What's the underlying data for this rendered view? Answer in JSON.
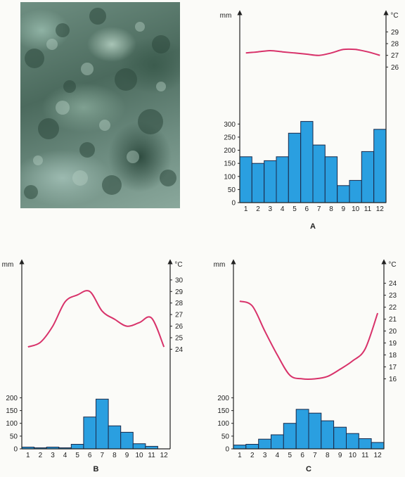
{
  "chart_data": [
    {
      "type": "bar",
      "label": "A",
      "categories": [
        "1",
        "2",
        "3",
        "4",
        "5",
        "6",
        "7",
        "8",
        "9",
        "10",
        "11",
        "12"
      ],
      "series": [
        {
          "values": [
            175,
            150,
            160,
            175,
            265,
            310,
            220,
            175,
            65,
            85,
            195,
            280
          ]
        },
        {
          "values": [
            27.2,
            27.3,
            27.4,
            27.3,
            27.2,
            27.1,
            27.0,
            27.2,
            27.5,
            27.5,
            27.3,
            27.0
          ]
        }
      ],
      "y_left_label": "mm",
      "y_left_ticks": [
        "0",
        "50",
        "100",
        "150",
        "200",
        "250",
        "300"
      ],
      "y_left_lim": [
        0,
        325
      ],
      "y_right_label": "°C",
      "y_right_ticks": [
        "26",
        "27",
        "28",
        "29"
      ],
      "y_right_lim": [
        25.6,
        29.5
      ]
    },
    {
      "type": "bar",
      "label": "B",
      "categories": [
        "1",
        "2",
        "3",
        "4",
        "5",
        "6",
        "7",
        "8",
        "9",
        "10",
        "11",
        "12"
      ],
      "series": [
        {
          "values": [
            7,
            4,
            7,
            4,
            18,
            125,
            195,
            90,
            65,
            20,
            10,
            0
          ]
        },
        {
          "values": [
            24.2,
            24.6,
            26.0,
            28.1,
            28.7,
            29.0,
            27.3,
            26.6,
            26.0,
            26.3,
            26.7,
            24.2
          ]
        }
      ],
      "y_left_label": "mm",
      "y_left_ticks": [
        "0",
        "50",
        "100",
        "150",
        "200"
      ],
      "y_left_lim": [
        0,
        215
      ],
      "y_right_label": "°C",
      "y_right_ticks": [
        "24",
        "25",
        "26",
        "27",
        "28",
        "29",
        "30"
      ],
      "y_right_lim": [
        23.6,
        30.6
      ]
    },
    {
      "type": "bar",
      "label": "C",
      "categories": [
        "1",
        "2",
        "3",
        "4",
        "5",
        "6",
        "7",
        "8",
        "9",
        "10",
        "11",
        "12"
      ],
      "series": [
        {
          "values": [
            15,
            18,
            38,
            55,
            100,
            155,
            140,
            110,
            85,
            60,
            40,
            25
          ]
        },
        {
          "values": [
            22.5,
            22.1,
            20.0,
            18.0,
            16.3,
            16.0,
            16.0,
            16.2,
            16.8,
            17.5,
            18.5,
            21.5
          ]
        }
      ],
      "y_left_label": "mm",
      "y_left_ticks": [
        "0",
        "50",
        "100",
        "150",
        "200"
      ],
      "y_left_lim": [
        0,
        215
      ],
      "y_right_label": "°C",
      "y_right_ticks": [
        "16",
        "17",
        "18",
        "19",
        "20",
        "21",
        "22",
        "23",
        "24"
      ],
      "y_right_lim": [
        15.5,
        24.8
      ]
    }
  ],
  "colors": {
    "bar_fill": "#2a9fe0",
    "bar_stroke": "#1b2a4a",
    "line": "#d8326a",
    "axis": "#222222"
  }
}
